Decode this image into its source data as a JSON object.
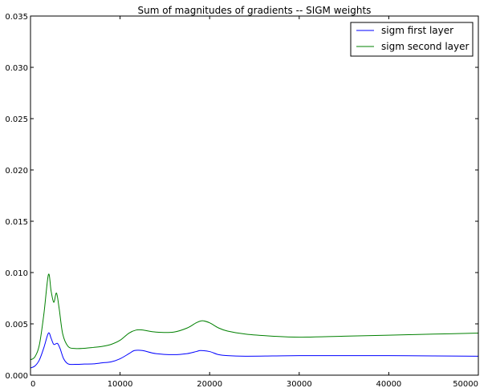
{
  "chart_data": {
    "type": "line",
    "title": "Sum of magnitudes of gradients -- SIGM weights",
    "xlabel": "",
    "ylabel": "",
    "xlim": [
      0,
      50000
    ],
    "ylim": [
      0,
      0.035
    ],
    "x_ticks": [
      0,
      10000,
      20000,
      30000,
      40000,
      50000
    ],
    "x_tick_labels": [
      "0",
      "10000",
      "20000",
      "30000",
      "40000",
      "50000"
    ],
    "y_ticks": [
      0,
      0.005,
      0.01,
      0.015,
      0.02,
      0.025,
      0.03,
      0.035
    ],
    "y_tick_labels": [
      "0.000",
      "0.005",
      "0.010",
      "0.015",
      "0.020",
      "0.025",
      "0.030",
      "0.035"
    ],
    "grid": false,
    "legend_position": "top-right",
    "series": [
      {
        "name": "sigm first layer",
        "color": "#0000ff",
        "x": [
          0,
          500,
          1000,
          1500,
          2000,
          2300,
          2600,
          3000,
          3300,
          3700,
          4200,
          5000,
          6000,
          7000,
          8000,
          9000,
          10000,
          11000,
          11600,
          12500,
          14000,
          16000,
          17500,
          18500,
          19000,
          20000,
          21000,
          22000,
          24000,
          27000,
          30000,
          35000,
          40000,
          45000,
          50000
        ],
        "y": [
          0.0007,
          0.0009,
          0.0015,
          0.0027,
          0.0041,
          0.0036,
          0.003,
          0.0031,
          0.0026,
          0.0016,
          0.0011,
          0.00105,
          0.00108,
          0.0011,
          0.0012,
          0.0013,
          0.0016,
          0.0021,
          0.0024,
          0.0024,
          0.0021,
          0.002,
          0.0021,
          0.0023,
          0.0024,
          0.0023,
          0.002,
          0.0019,
          0.00185,
          0.00187,
          0.0019,
          0.0019,
          0.0019,
          0.00188,
          0.00185
        ]
      },
      {
        "name": "sigm second layer",
        "color": "#008000",
        "x": [
          0,
          500,
          1000,
          1500,
          2000,
          2300,
          2600,
          2900,
          3200,
          3600,
          4200,
          5000,
          6000,
          7000,
          8000,
          9000,
          10000,
          11000,
          11800,
          12500,
          14000,
          16000,
          17500,
          18500,
          19200,
          20000,
          21000,
          22000,
          24000,
          27000,
          30000,
          35000,
          40000,
          45000,
          50000
        ],
        "y": [
          0.0015,
          0.0018,
          0.003,
          0.006,
          0.0098,
          0.0082,
          0.0071,
          0.008,
          0.0065,
          0.004,
          0.0028,
          0.0026,
          0.00262,
          0.0027,
          0.0028,
          0.003,
          0.0034,
          0.0041,
          0.0044,
          0.0044,
          0.0042,
          0.0042,
          0.0046,
          0.0051,
          0.0053,
          0.0051,
          0.0046,
          0.0043,
          0.004,
          0.0038,
          0.0037,
          0.0038,
          0.0039,
          0.004,
          0.0041
        ]
      }
    ]
  }
}
